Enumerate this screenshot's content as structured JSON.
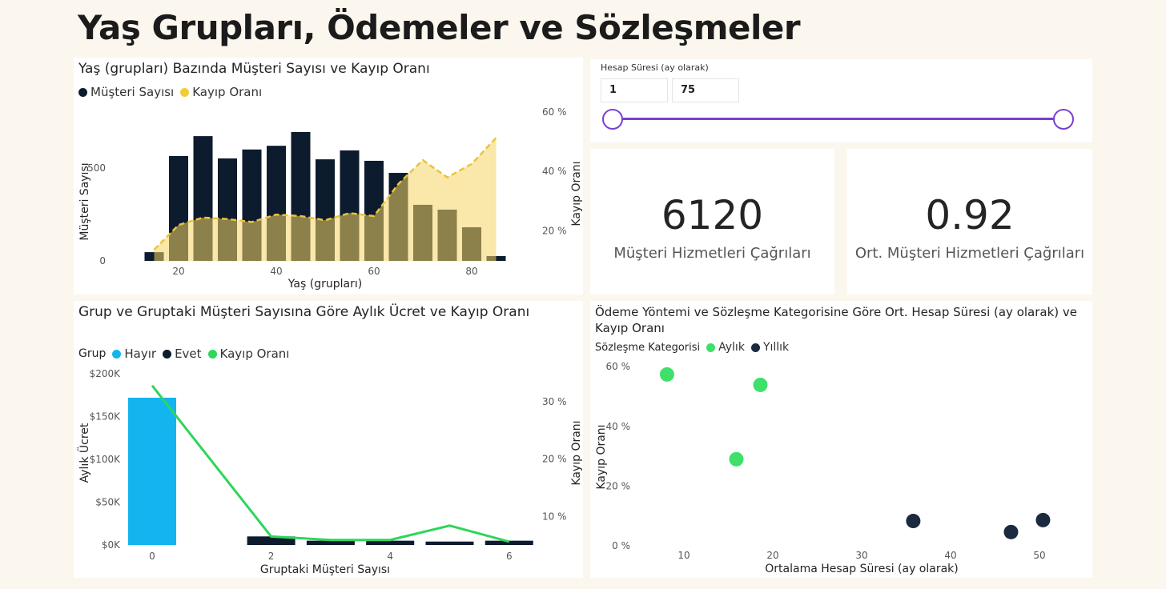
{
  "page_title": "Yaş Grupları, Ödemeler ve Sözleşmeler",
  "slider": {
    "label": "Hesap Süresi (ay olarak)",
    "min_value": "1",
    "max_value": "75",
    "accent": "#7b3fd1"
  },
  "cards": [
    {
      "value": "6120",
      "label": "Müşteri Hizmetleri Çağrıları"
    },
    {
      "value": "0.92",
      "label": "Ort. Müşteri Hizmetleri Çağrıları"
    }
  ],
  "chart_data": [
    {
      "type": "bar+area",
      "title": "Yaş (grupları) Bazında Müşteri Sayısı ve Kayıp Oranı",
      "legend": [
        "Müşteri Sayısı",
        "Kayıp Oranı"
      ],
      "legend_placement": "top-left",
      "xlabel": "Yaş (grupları)",
      "ylabel": "Müşteri Sayısı",
      "y2label": "Kayıp Oranı",
      "x_ticks": [
        "20",
        "40",
        "60",
        "80"
      ],
      "y_ticks": [
        "0",
        "500"
      ],
      "y2_ticks": [
        "20 %",
        "40 %",
        "60 %"
      ],
      "x": [
        15,
        20,
        25,
        30,
        35,
        40,
        45,
        50,
        55,
        60,
        65,
        70,
        75,
        80,
        85
      ],
      "series": [
        {
          "name": "Müşteri Sayısı",
          "axis": "left",
          "color": "#0d1b2e",
          "values": [
            47,
            565,
            672,
            552,
            600,
            620,
            694,
            547,
            595,
            539,
            474,
            302,
            276,
            181,
            26
          ]
        },
        {
          "name": "Kayıp Oranı",
          "axis": "right",
          "unit": "%",
          "color": "#e8c53a",
          "values": [
            13.7,
            22,
            24.5,
            24,
            23,
            25.5,
            25,
            23.6,
            26,
            25,
            35.8,
            43.8,
            38,
            42.5,
            51.3
          ]
        }
      ]
    },
    {
      "type": "bar+line",
      "title": "Grup ve Gruptaki Müşteri Sayısına Göre Aylık Ücret ve Kayıp Oranı",
      "legend_title": "Grup",
      "legend": [
        "Hayır",
        "Evet",
        "Kayıp Oranı"
      ],
      "legend_placement": "top-left",
      "xlabel": "Gruptaki Müşteri Sayısı",
      "ylabel": "Aylık Ücret",
      "y2label": "Kayıp Oranı",
      "x_ticks": [
        "0",
        "2",
        "4",
        "6"
      ],
      "y_ticks": [
        "$0K",
        "$50K",
        "$100K",
        "$150K",
        "$200K"
      ],
      "y2_ticks": [
        "10 %",
        "20 %",
        "30 %"
      ],
      "x": [
        0,
        2,
        3,
        4,
        5,
        6
      ],
      "bar_groups": [
        "Hayır",
        "Evet",
        "Evet",
        "Evet",
        "Evet",
        "Evet"
      ],
      "colors": {
        "Hayır": "#12b5f0",
        "Evet": "#0d1b2e",
        "Kayıp Oranı": "#2ed65a"
      },
      "series": [
        {
          "name": "Aylık Ücret",
          "axis": "left",
          "values": [
            172000,
            10000,
            5000,
            5000,
            4000,
            5000
          ]
        },
        {
          "name": "Kayıp Oranı",
          "axis": "right",
          "unit": "%",
          "values": [
            32.8,
            6.5,
            5.9,
            5.9,
            8.4,
            5.6
          ]
        }
      ]
    },
    {
      "type": "scatter",
      "title": "Ödeme Yöntemi ve Sözleşme Kategorisine Göre Ort. Hesap Süresi (ay olarak) ve Kayıp Oranı",
      "legend_title": "Sözleşme Kategorisi",
      "legend": [
        "Aylık",
        "Yıllık"
      ],
      "legend_placement": "top-left",
      "xlabel": "Ortalama Hesap Süresi (ay olarak)",
      "ylabel": "Kayıp Oranı",
      "x_ticks": [
        "10",
        "20",
        "30",
        "40",
        "50"
      ],
      "y_ticks": [
        "0 %",
        "20 %",
        "40 %",
        "60 %"
      ],
      "series": [
        {
          "name": "Aylık",
          "color": "#3ee06a",
          "points": [
            [
              8.1,
              57.4
            ],
            [
              18.6,
              53.9
            ],
            [
              15.9,
              29
            ]
          ]
        },
        {
          "name": "Yıllık",
          "color": "#1c2a40",
          "points": [
            [
              35.8,
              8.3
            ],
            [
              46.8,
              4.6
            ],
            [
              50.4,
              8.6
            ]
          ]
        }
      ]
    }
  ]
}
